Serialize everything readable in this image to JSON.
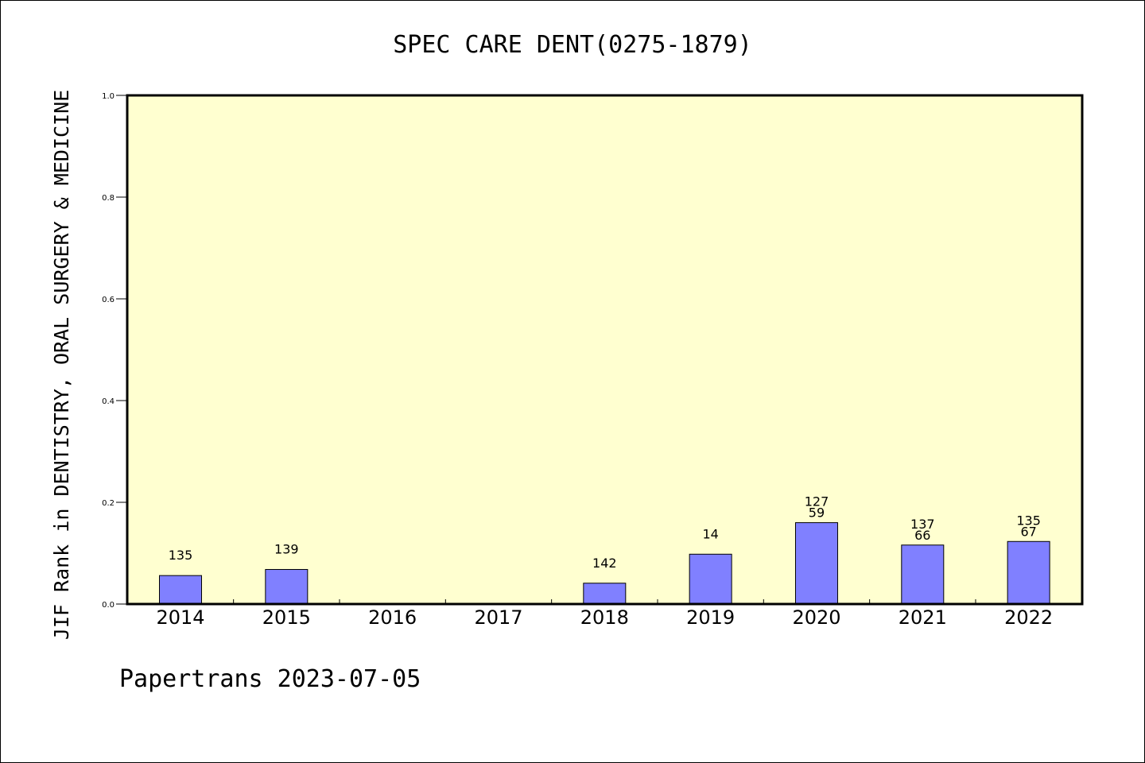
{
  "chart_data": {
    "type": "bar",
    "title": "SPEC CARE DENT(0275-1879)",
    "ylabel": "JIF Rank in DENTISTRY, ORAL SURGERY & MEDICINE",
    "xlabel": "",
    "ylim": [
      0,
      1.0
    ],
    "yticks": [
      "0.0",
      "0.2",
      "0.4",
      "0.6",
      "0.8",
      "1.0"
    ],
    "categories": [
      "2014",
      "2015",
      "2016",
      "2017",
      "2018",
      "2019",
      "2020",
      "2021",
      "2022"
    ],
    "values": [
      0.056,
      0.068,
      null,
      null,
      0.041,
      0.098,
      0.16,
      0.116,
      0.123
    ],
    "bar_labels": [
      [
        "135"
      ],
      [
        "139"
      ],
      [],
      [],
      [
        "142"
      ],
      [
        "14"
      ],
      [
        "127",
        "59"
      ],
      [
        "137",
        "66"
      ],
      [
        "135",
        "67"
      ]
    ],
    "grid": false,
    "colors": {
      "bar_fill": "#8080ff",
      "bar_stroke": "#000000",
      "plot_background": "#ffffd0",
      "axis": "#000000"
    }
  },
  "footer": "Papertrans 2023-07-05"
}
